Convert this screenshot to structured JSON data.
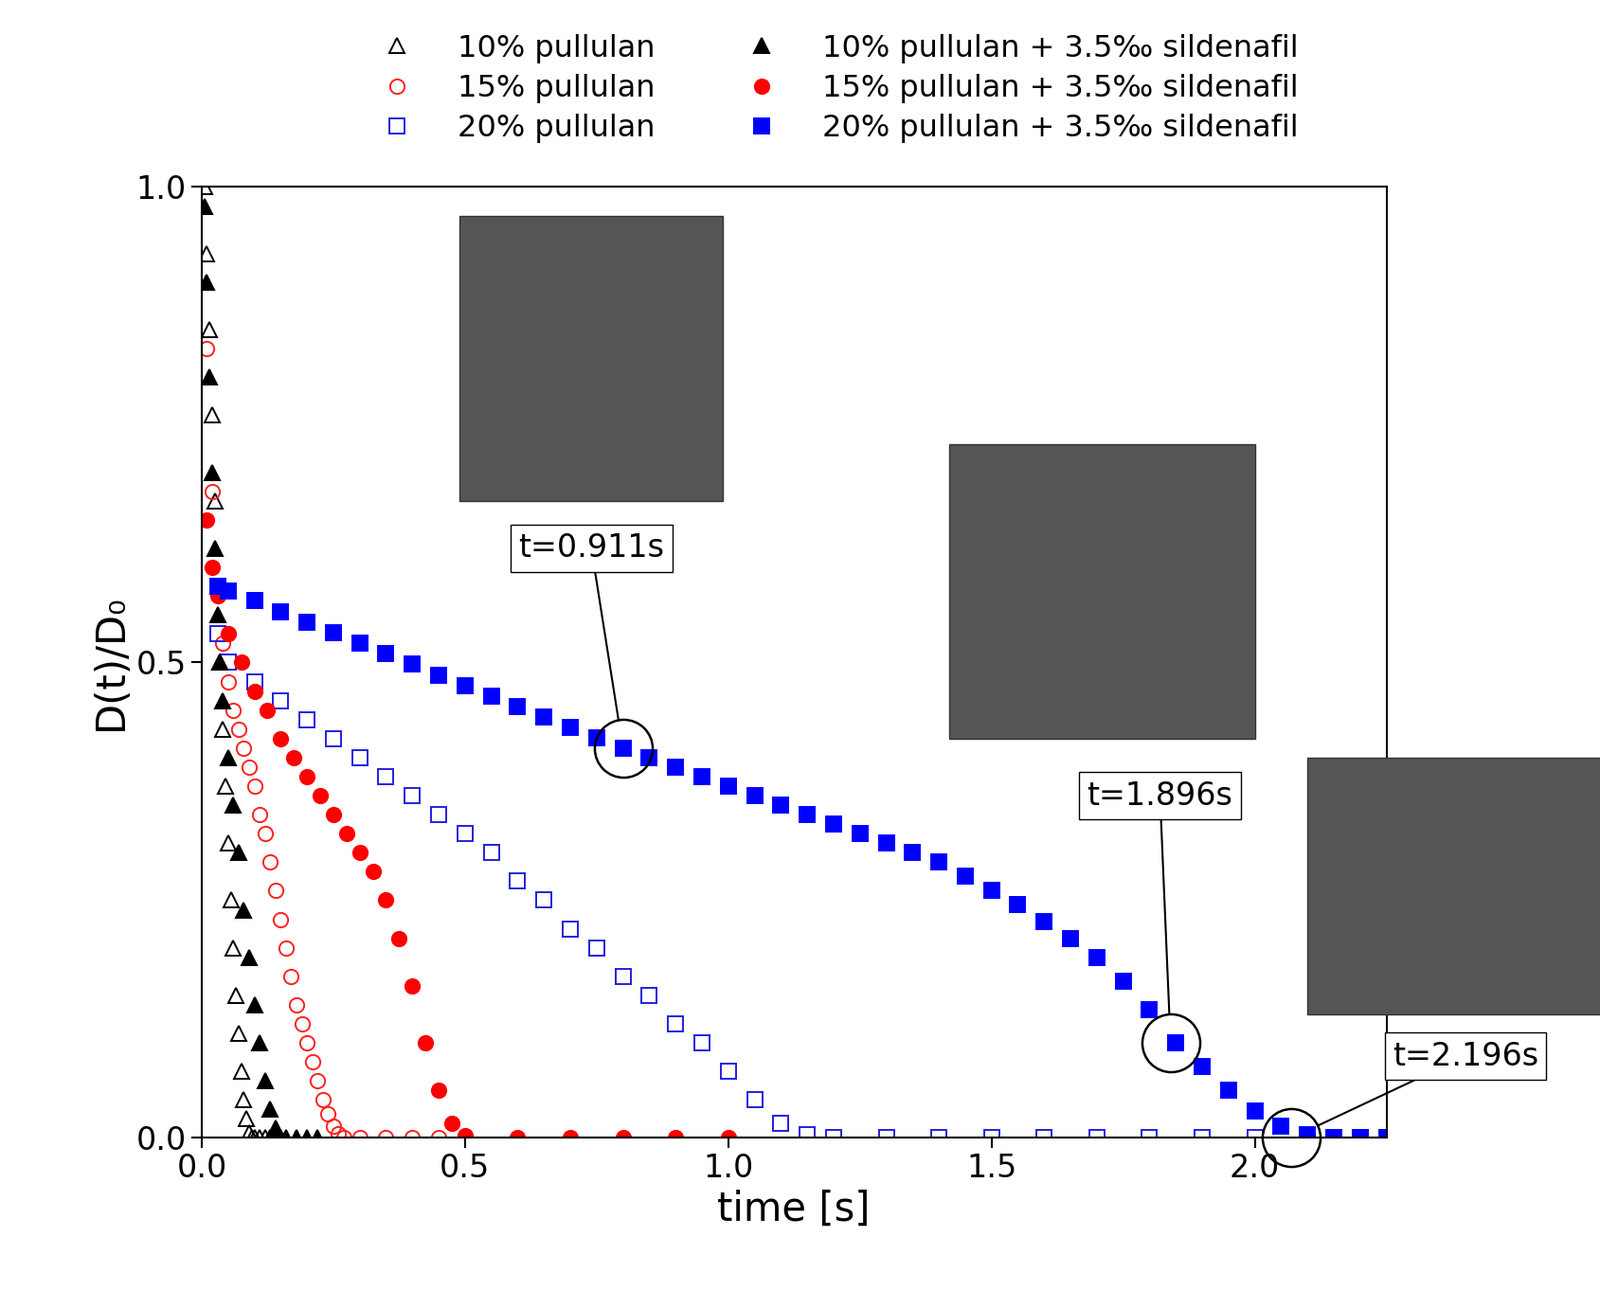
{
  "chart_data": {
    "type": "scatter",
    "xlabel": "time [s]",
    "ylabel": "D(t)/D₀",
    "xlim": [
      0,
      2.25
    ],
    "ylim": [
      0,
      1
    ],
    "xticks": [
      {
        "value": 0,
        "label": "0.0"
      },
      {
        "value": 0.5,
        "label": "0.5"
      },
      {
        "value": 1,
        "label": "1.0"
      },
      {
        "value": 1.5,
        "label": "1.5"
      },
      {
        "value": 2,
        "label": "2.0"
      }
    ],
    "yticks": [
      {
        "value": 0,
        "label": "0.0"
      },
      {
        "value": 0.5,
        "label": "0.5"
      },
      {
        "value": 1,
        "label": "1.0"
      }
    ],
    "legend": "upper center",
    "series": [
      {
        "name": "10% pullulan",
        "color": "#000000",
        "marker": "triangle-open",
        "x": [
          0.005,
          0.01,
          0.015,
          0.02,
          0.025,
          0.03,
          0.035,
          0.04,
          0.045,
          0.05,
          0.055,
          0.06,
          0.065,
          0.07,
          0.075,
          0.08,
          0.085,
          0.09,
          0.095,
          0.1,
          0.11,
          0.12,
          0.13,
          0.14,
          0.15
        ],
        "values": [
          1.0,
          0.93,
          0.85,
          0.76,
          0.67,
          0.58,
          0.5,
          0.43,
          0.37,
          0.31,
          0.25,
          0.2,
          0.15,
          0.11,
          0.07,
          0.04,
          0.02,
          0.005,
          0,
          0,
          0,
          0,
          0,
          0,
          0
        ]
      },
      {
        "name": "15% pullulan",
        "color": "#ff2020",
        "marker": "circle-open",
        "x": [
          0.01,
          0.02,
          0.03,
          0.04,
          0.05,
          0.06,
          0.07,
          0.08,
          0.09,
          0.1,
          0.11,
          0.12,
          0.13,
          0.14,
          0.15,
          0.16,
          0.17,
          0.18,
          0.19,
          0.2,
          0.21,
          0.22,
          0.23,
          0.24,
          0.25,
          0.26,
          0.27,
          0.3,
          0.35,
          0.4,
          0.45,
          0.5
        ],
        "values": [
          0.83,
          0.68,
          0.58,
          0.52,
          0.48,
          0.45,
          0.43,
          0.41,
          0.39,
          0.37,
          0.34,
          0.32,
          0.29,
          0.26,
          0.23,
          0.2,
          0.17,
          0.14,
          0.12,
          0.1,
          0.08,
          0.06,
          0.04,
          0.025,
          0.012,
          0.004,
          0,
          0,
          0,
          0,
          0,
          0
        ]
      },
      {
        "name": "20% pullulan",
        "color": "#2020e0",
        "marker": "square-open",
        "x": [
          0.03,
          0.05,
          0.1,
          0.15,
          0.2,
          0.25,
          0.3,
          0.35,
          0.4,
          0.45,
          0.5,
          0.55,
          0.6,
          0.65,
          0.7,
          0.75,
          0.8,
          0.85,
          0.9,
          0.95,
          1.0,
          1.05,
          1.1,
          1.15,
          1.2,
          1.3,
          1.4,
          1.5,
          1.6,
          1.7,
          1.8,
          1.9,
          2.0,
          2.1,
          2.2
        ],
        "values": [
          0.53,
          0.5,
          0.48,
          0.46,
          0.44,
          0.42,
          0.4,
          0.38,
          0.36,
          0.34,
          0.32,
          0.3,
          0.27,
          0.25,
          0.22,
          0.2,
          0.17,
          0.15,
          0.12,
          0.1,
          0.07,
          0.04,
          0.015,
          0.003,
          0,
          0,
          0,
          0,
          0,
          0,
          0,
          0,
          0,
          0,
          0
        ]
      },
      {
        "name": "10% pullulan + 3.5‰ sildenafil",
        "color": "#000000",
        "marker": "triangle",
        "x": [
          0.005,
          0.01,
          0.015,
          0.02,
          0.025,
          0.03,
          0.035,
          0.04,
          0.05,
          0.06,
          0.07,
          0.08,
          0.09,
          0.1,
          0.11,
          0.12,
          0.13,
          0.14,
          0.15,
          0.16,
          0.18,
          0.2,
          0.22
        ],
        "values": [
          0.98,
          0.9,
          0.8,
          0.7,
          0.62,
          0.55,
          0.5,
          0.46,
          0.4,
          0.35,
          0.3,
          0.24,
          0.19,
          0.14,
          0.1,
          0.06,
          0.03,
          0.01,
          0,
          0,
          0,
          0,
          0
        ]
      },
      {
        "name": "15% pullulan + 3.5‰ sildenafil",
        "color": "#ff0000",
        "marker": "circle",
        "x": [
          0.01,
          0.02,
          0.03,
          0.05,
          0.075,
          0.1,
          0.125,
          0.15,
          0.175,
          0.2,
          0.225,
          0.25,
          0.275,
          0.3,
          0.325,
          0.35,
          0.375,
          0.4,
          0.425,
          0.45,
          0.475,
          0.5,
          0.6,
          0.7,
          0.8,
          0.9,
          1.0
        ],
        "values": [
          0.65,
          0.6,
          0.57,
          0.53,
          0.5,
          0.47,
          0.45,
          0.42,
          0.4,
          0.38,
          0.36,
          0.34,
          0.32,
          0.3,
          0.28,
          0.25,
          0.21,
          0.16,
          0.1,
          0.05,
          0.015,
          0.002,
          0,
          0,
          0,
          0,
          0
        ]
      },
      {
        "name": "20% pullulan + 3.5‰ sildenafil",
        "color": "#0000ff",
        "marker": "square",
        "x": [
          0.03,
          0.05,
          0.1,
          0.15,
          0.2,
          0.25,
          0.3,
          0.35,
          0.4,
          0.45,
          0.5,
          0.55,
          0.6,
          0.65,
          0.7,
          0.75,
          0.8,
          0.85,
          0.9,
          0.95,
          1.0,
          1.05,
          1.1,
          1.15,
          1.2,
          1.25,
          1.3,
          1.35,
          1.4,
          1.45,
          1.5,
          1.55,
          1.6,
          1.65,
          1.7,
          1.75,
          1.8,
          1.85,
          1.9,
          1.95,
          2.0,
          2.05,
          2.1,
          2.15,
          2.2,
          2.25
        ],
        "values": [
          0.58,
          0.575,
          0.565,
          0.553,
          0.542,
          0.531,
          0.52,
          0.509,
          0.498,
          0.487,
          0.476,
          0.465,
          0.454,
          0.443,
          0.432,
          0.421,
          0.41,
          0.4,
          0.39,
          0.38,
          0.37,
          0.36,
          0.35,
          0.34,
          0.33,
          0.32,
          0.31,
          0.3,
          0.29,
          0.275,
          0.26,
          0.245,
          0.228,
          0.21,
          0.19,
          0.165,
          0.135,
          0.1,
          0.075,
          0.05,
          0.028,
          0.012,
          0.003,
          0,
          0,
          0
        ]
      }
    ],
    "annotations": [
      {
        "text": "t=0.911s",
        "x": 0.8,
        "y": 0.41
      },
      {
        "text": "t=1.896s",
        "x": 1.84,
        "y": 0.1
      },
      {
        "text": "t=2.196s",
        "x": 2.07,
        "y": 0
      }
    ]
  }
}
